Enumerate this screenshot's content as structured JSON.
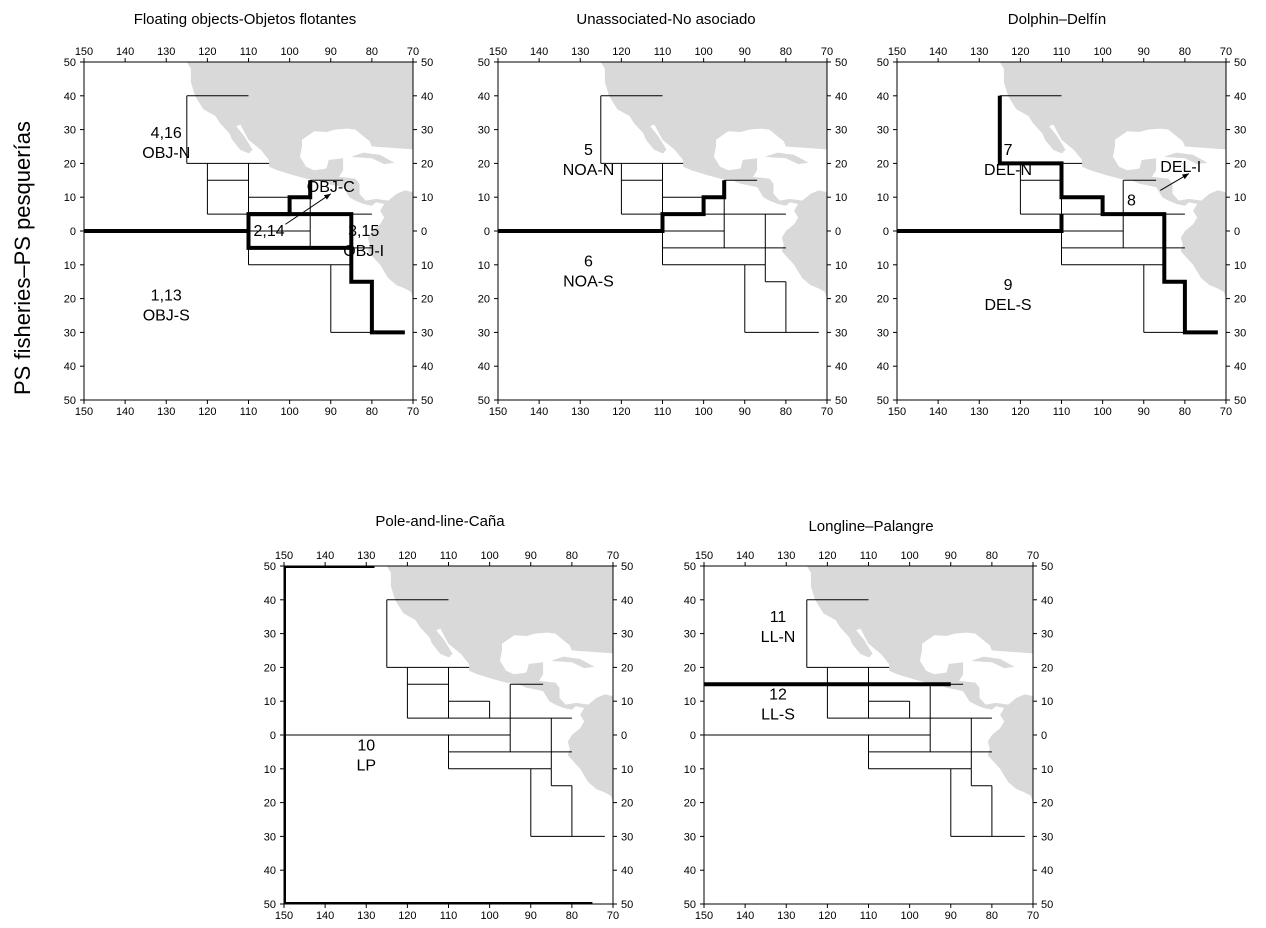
{
  "side_label": "PS fisheries–PS pesquerías",
  "axis": {
    "lon_ticks": [
      150,
      140,
      130,
      120,
      110,
      100,
      90,
      80,
      70
    ],
    "lat_ticks": [
      50,
      40,
      30,
      20,
      10,
      0,
      10,
      20,
      30,
      40,
      50
    ]
  },
  "colors": {
    "land": "#d9d9d9",
    "grid": "#000000",
    "background": "#ffffff"
  },
  "maps": [
    {
      "id": "floating",
      "title": "Floating objects-Objetos flotantes",
      "areas": [
        {
          "number": "4,16",
          "code": "OBJ-N"
        },
        {
          "number": "2,14",
          "code": ""
        },
        {
          "number": "",
          "code": "OBJ-C"
        },
        {
          "number": "3,15",
          "code": "OBJ-I"
        },
        {
          "number": "1,13",
          "code": "OBJ-S"
        }
      ]
    },
    {
      "id": "unassociated",
      "title": "Unassociated-No asociado",
      "areas": [
        {
          "number": "5",
          "code": "NOA-N"
        },
        {
          "number": "6",
          "code": "NOA-S"
        }
      ]
    },
    {
      "id": "dolphin",
      "title": "Dolphin–Delfín",
      "areas": [
        {
          "number": "7",
          "code": "DEL-N"
        },
        {
          "number": "",
          "code": "DEL-I"
        },
        {
          "number": "8",
          "code": ""
        },
        {
          "number": "9",
          "code": "DEL-S"
        }
      ]
    },
    {
      "id": "pole",
      "title": "Pole-and-line-Caña",
      "areas": [
        {
          "number": "10",
          "code": "LP"
        }
      ]
    },
    {
      "id": "longline",
      "title": "Longline–Palangre",
      "areas": [
        {
          "number": "11",
          "code": "LL-N"
        },
        {
          "number": "12",
          "code": "LL-S"
        }
      ]
    }
  ]
}
